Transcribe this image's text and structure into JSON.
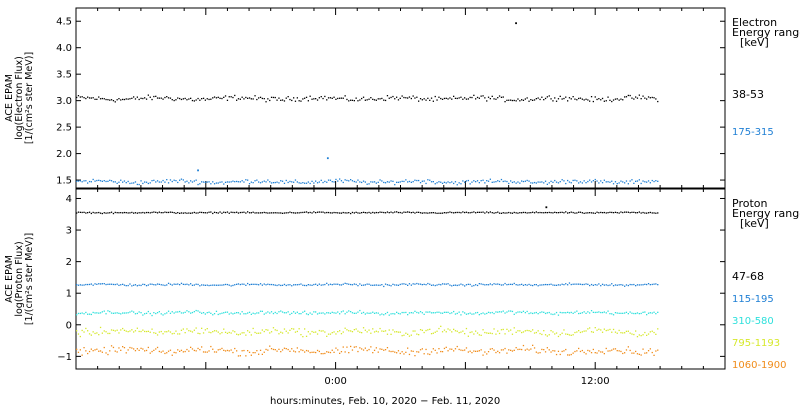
{
  "chart_data": [
    {
      "type": "scatter",
      "name": "electron",
      "ylabel_lines": [
        "ACE EPAM",
        "log(Electron Flux)",
        "[1/(cm²s ster MeV)]"
      ],
      "ylim": [
        1.35,
        4.75
      ],
      "yticks": [
        1.5,
        2.0,
        2.5,
        3.0,
        3.5,
        4.0,
        4.5
      ],
      "ytick_labels": [
        "1.5",
        "2.0",
        "2.5",
        "3.0",
        "3.5",
        "4.0",
        "4.5"
      ],
      "legend_title": [
        "Electron",
        "Energy ranges",
        "[keV]"
      ],
      "series": [
        {
          "name": "38-53",
          "color": "#000000",
          "level": 3.05,
          "noise": 0.07
        },
        {
          "name": "175-315",
          "color": "#1f7fd4",
          "level": 1.48,
          "noise": 0.06
        }
      ],
      "outliers": [
        {
          "x": 8.3,
          "y": 4.48,
          "series": "38-53"
        },
        {
          "x": -6.4,
          "y": 1.7,
          "series": "175-315"
        },
        {
          "x": -0.4,
          "y": 1.93,
          "series": "175-315"
        }
      ]
    },
    {
      "type": "scatter",
      "name": "proton",
      "ylabel_lines": [
        "ACE EPAM",
        "log(Proton Flux)",
        "[1/(cm²s ster MeV)]"
      ],
      "ylim": [
        -1.4,
        4.3
      ],
      "yticks": [
        -1,
        0,
        1,
        2,
        3,
        4
      ],
      "ytick_labels": [
        "−1",
        "0",
        "1",
        "2",
        "3",
        "4"
      ],
      "legend_title": [
        "Proton",
        "Energy ranges",
        "[keV]"
      ],
      "series": [
        {
          "name": "47-68",
          "color": "#000000",
          "level": 3.57,
          "noise": 0.03
        },
        {
          "name": "115-195",
          "color": "#1f7fd4",
          "level": 1.29,
          "noise": 0.05
        },
        {
          "name": "310-580",
          "color": "#2ee0dc",
          "level": 0.4,
          "noise": 0.08
        },
        {
          "name": "795-1193",
          "color": "#d6e82c",
          "level": -0.2,
          "noise": 0.17
        },
        {
          "name": "1060-1900",
          "color": "#f08c1a",
          "level": -0.8,
          "noise": 0.17
        }
      ],
      "outliers": [
        {
          "x": 9.7,
          "y": 3.75,
          "series": "47-68"
        }
      ]
    }
  ],
  "x_axis": {
    "range_hours": [
      -12,
      18
    ],
    "data_end_hours": 14.9,
    "ticks_hours": [
      0,
      12
    ],
    "tick_labels": [
      "0:00",
      "12:00"
    ],
    "label": "hours:minutes, Feb. 10, 2020 − Feb. 11, 2020"
  }
}
